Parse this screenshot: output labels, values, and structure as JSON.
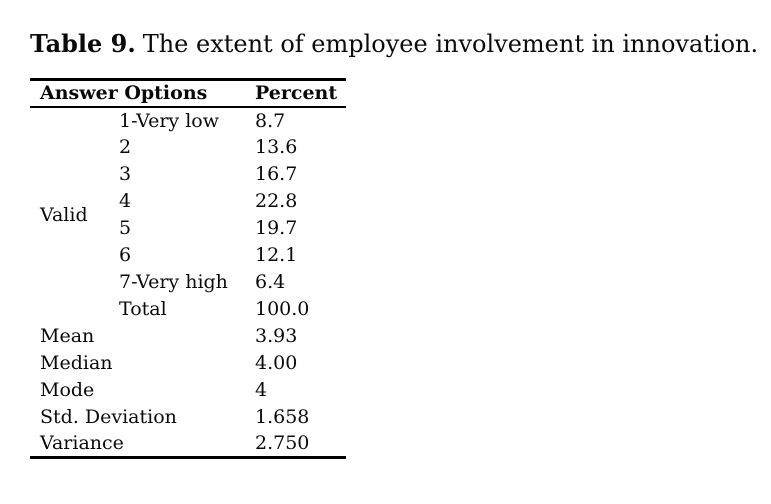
{
  "caption": {
    "label": "Table 9.",
    "text": "The extent of employee involvement in innovation."
  },
  "table": {
    "headers": {
      "answer_options": "Answer Options",
      "percent": "Percent"
    },
    "valid_group_label": "Valid",
    "valid_rows": [
      {
        "option": "1-Very low",
        "percent": "8.7"
      },
      {
        "option": "2",
        "percent": "13.6"
      },
      {
        "option": "3",
        "percent": "16.7"
      },
      {
        "option": "4",
        "percent": "22.8"
      },
      {
        "option": "5",
        "percent": "19.7"
      },
      {
        "option": "6",
        "percent": "12.1"
      },
      {
        "option": "7-Very high",
        "percent": "6.4"
      },
      {
        "option": "Total",
        "percent": "100.0"
      }
    ],
    "stats_rows": [
      {
        "label": "Mean",
        "value": "3.93"
      },
      {
        "label": "Median",
        "value": "4.00"
      },
      {
        "label": "Mode",
        "value": "4"
      },
      {
        "label": "Std. Deviation",
        "value": "1.658"
      },
      {
        "label": "Variance",
        "value": "2.750"
      }
    ]
  },
  "colors": {
    "text": "#0a0a0a",
    "background": "#ffffff",
    "rule": "#000000"
  }
}
